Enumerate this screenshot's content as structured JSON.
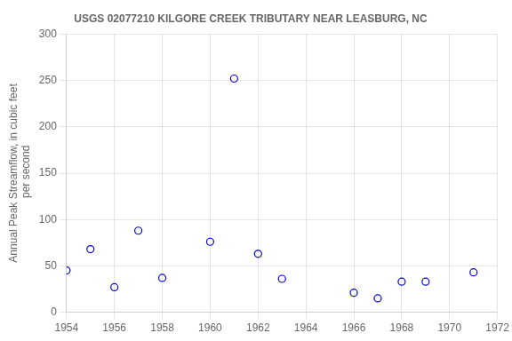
{
  "chart_data": {
    "type": "scatter",
    "title": "USGS 02077210 KILGORE CREEK TRIBUTARY NEAR LEASBURG, NC",
    "ylabel": [
      "Annual Peak Streamflow, in cubic feet",
      " per second"
    ],
    "x": [
      1954,
      1955,
      1956,
      1957,
      1958,
      1960,
      1961,
      1962,
      1963,
      1966,
      1967,
      1968,
      1969,
      1971
    ],
    "values": [
      45,
      68,
      27,
      88,
      37,
      76,
      252,
      63,
      36,
      21,
      15,
      33,
      33,
      43
    ],
    "color": "#0000cc",
    "marker": "circle",
    "xlim": [
      1954,
      1972
    ],
    "ylim": [
      0,
      300
    ],
    "xticks": [
      1954,
      1956,
      1958,
      1960,
      1962,
      1964,
      1966,
      1968,
      1970,
      1972
    ],
    "yticks": [
      0,
      50,
      100,
      150,
      200,
      250,
      300
    ],
    "grid": true
  }
}
